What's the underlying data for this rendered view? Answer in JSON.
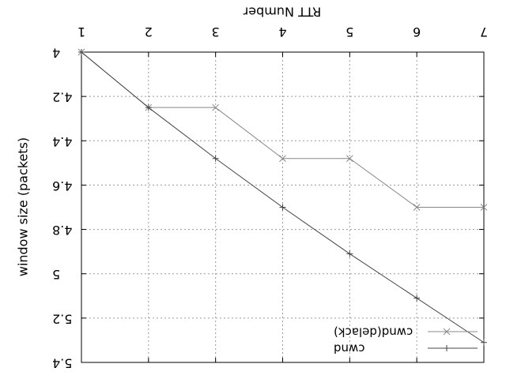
{
  "chart_data": {
    "type": "line",
    "orientation": "rotated-180",
    "title": "",
    "xlabel": "RTT Number",
    "ylabel": "window size (packets)",
    "xlim": [
      1,
      7
    ],
    "ylim": [
      4,
      5.4
    ],
    "x_ticks": [
      "1",
      "2",
      "3",
      "4",
      "5",
      "6",
      "7"
    ],
    "y_ticks": [
      "4",
      "4.2",
      "4.4",
      "4.6",
      "4.8",
      "5",
      "5.2",
      "5.4"
    ],
    "grid": true,
    "legend_position": "bottom-right",
    "series": [
      {
        "name": "cwnd(delack)",
        "marker": "x",
        "color": "#888888",
        "x": [
          1,
          2,
          3,
          4,
          5,
          6,
          7
        ],
        "y": [
          4,
          4.25,
          4.25,
          4.48,
          4.48,
          4.7,
          4.7
        ]
      },
      {
        "name": "cwnd",
        "marker": "+",
        "color": "#444444",
        "x": [
          1,
          2,
          3,
          4,
          5,
          6,
          7
        ],
        "y": [
          4,
          4.25,
          4.48,
          4.7,
          4.91,
          5.11,
          5.31
        ]
      }
    ]
  }
}
